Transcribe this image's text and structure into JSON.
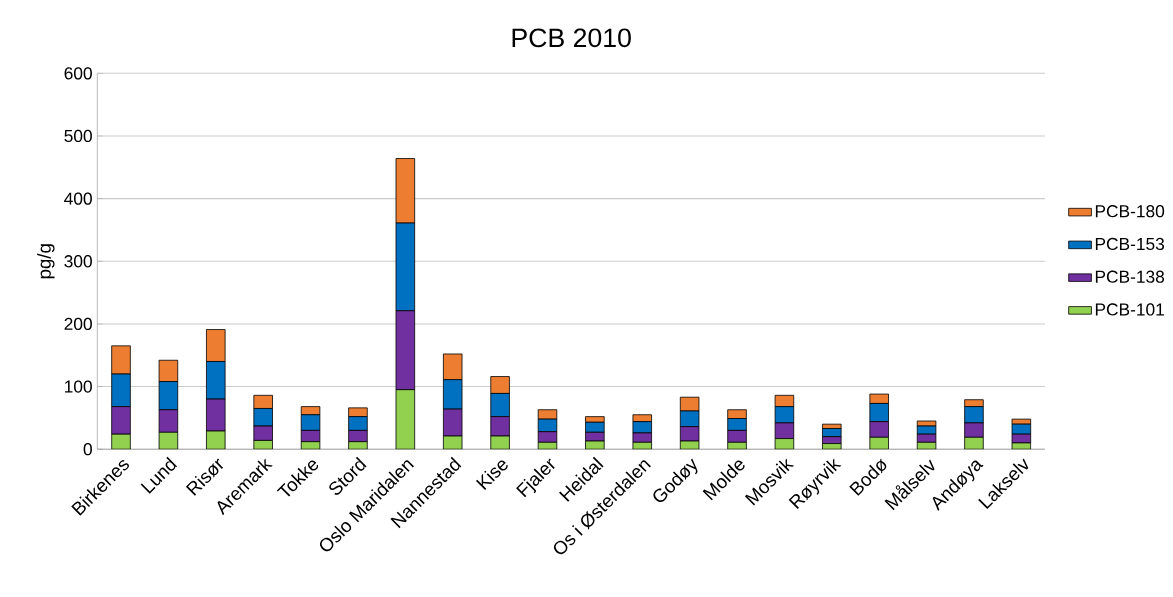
{
  "chart_data": {
    "type": "bar",
    "title": "PCB   2010",
    "ylabel": "pg/g",
    "stacked": true,
    "grid": "y",
    "legend": "right",
    "categories": [
      "Birkenes",
      "Lund",
      "Risør",
      "Aremark",
      "Tokke",
      "Stord",
      "Oslo Maridalen",
      "Nannestad",
      "Kise",
      "Fjaler",
      "Heidal",
      "Os i Østerdalen",
      "Godøy",
      "Molde",
      "Mosvik",
      "Røyrvik",
      "Bodø",
      "Målselv",
      "Andøya",
      "Lakselv"
    ],
    "ylim": [
      0,
      600
    ],
    "yticks": [
      0,
      100,
      200,
      300,
      400,
      500,
      600
    ],
    "series": [
      {
        "name": "PCB-101",
        "color": "#92d050",
        "values": [
          24,
          27,
          29,
          14,
          12,
          12,
          95,
          21,
          21,
          11,
          13,
          11,
          13,
          11,
          17,
          9,
          19,
          11,
          19,
          10
        ]
      },
      {
        "name": "PCB-138",
        "color": "#7030a0",
        "values": [
          44,
          36,
          51,
          23,
          18,
          18,
          126,
          43,
          31,
          17,
          14,
          15,
          23,
          19,
          25,
          11,
          25,
          13,
          23,
          14
        ]
      },
      {
        "name": "PCB-153",
        "color": "#0070c0",
        "values": [
          52,
          45,
          60,
          28,
          25,
          22,
          140,
          47,
          37,
          20,
          16,
          18,
          25,
          19,
          26,
          13,
          29,
          13,
          26,
          16
        ]
      },
      {
        "name": "PCB-180",
        "color": "#ed7d31",
        "values": [
          45,
          34,
          51,
          21,
          13,
          14,
          103,
          41,
          27,
          15,
          9,
          11,
          22,
          14,
          18,
          7,
          15,
          8,
          11,
          8
        ]
      }
    ]
  }
}
